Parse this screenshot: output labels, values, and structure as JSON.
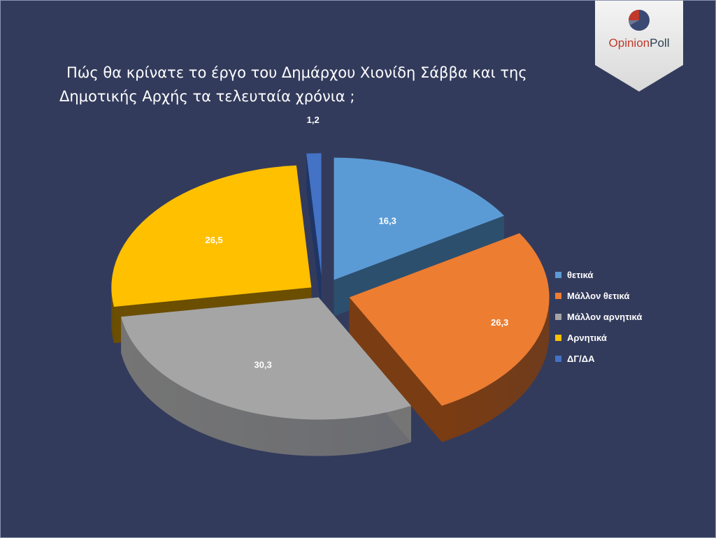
{
  "title": {
    "line1": "Πώς θα κρίνατε το έργο του Δημάρχου Χιονίδη Σάββα και της",
    "line2": "Δημοτικής Αρχής τα τελευταία χρόνια ;"
  },
  "logo": {
    "text_part1": "Opinion",
    "text_part2": "Poll",
    "color_text1": "#c0392b",
    "color_text2": "#2c3e50",
    "icon": "pie-logo-icon"
  },
  "chart_data": {
    "type": "pie",
    "title": "Πώς θα κρίνατε το έργο του Δημάρχου Χιονίδη Σάββα και της Δημοτικής Αρχής τα τελευταία χρόνια ;",
    "categories": [
      "θετικά",
      "Μάλλον θετικά",
      "Μάλλον αρνητικά",
      "Αρνητικά",
      "ΔΓ/ΔΑ"
    ],
    "values": [
      16.3,
      26.3,
      30.3,
      26.5,
      1.2
    ],
    "labels": [
      "16,3",
      "26,3",
      "30,3",
      "26,5",
      "1,2"
    ],
    "colors": [
      "#5b9bd5",
      "#ed7d31",
      "#a5a5a5",
      "#ffc000",
      "#4472c4"
    ],
    "side_colors": [
      "#2c4f6e",
      "#7a3c12",
      "#757575",
      "#6b4e00",
      "#1f3566"
    ],
    "legend_position": "right",
    "style": "3d-exploded"
  }
}
